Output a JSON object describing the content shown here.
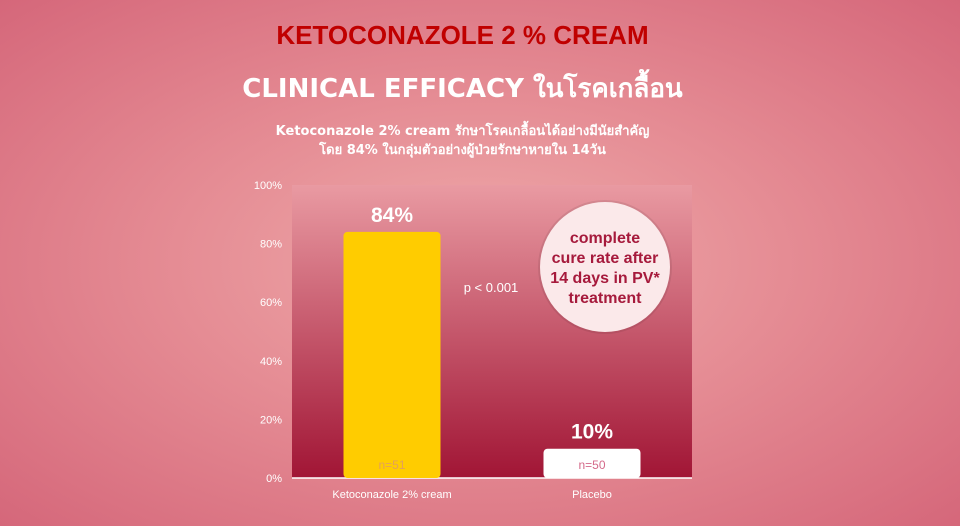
{
  "header": {
    "title": "KETOCONAZOLE 2 % CREAM",
    "subtitle": "CLINICAL EFFICACY ในโรคเกลื้อน",
    "description_line1": "Ketoconazole 2% cream รักษาโรคเกลื้อนได้อย่างมีนัยสำคัญ",
    "description_line2": "โดย 84% ในกลุ่มตัวอย่างผู้ป่วยรักษาหายใน 14วัน"
  },
  "chart_data": {
    "type": "bar",
    "categories": [
      "Ketoconazole 2% cream",
      "Placebo"
    ],
    "values": [
      84,
      10
    ],
    "value_labels": [
      "84%",
      "10%"
    ],
    "sample_labels": [
      "n=51",
      "n=50"
    ],
    "bar_colors": [
      "#ffcc00",
      "#ffffff"
    ],
    "ylim": [
      0,
      100
    ],
    "yticks": [
      0,
      20,
      40,
      60,
      80,
      100
    ],
    "ytick_labels": [
      "0%",
      "20%",
      "40%",
      "60%",
      "80%",
      "100%"
    ],
    "annotation_p": "p < 0.001",
    "callout_lines": [
      "complete",
      "cure rate after",
      "14 days in PV*",
      "treatment"
    ],
    "plot_gradient": [
      "#e99aa2",
      "#a11535"
    ],
    "text_color": "#ffffff",
    "callout_text_color": "#a61a3c"
  }
}
